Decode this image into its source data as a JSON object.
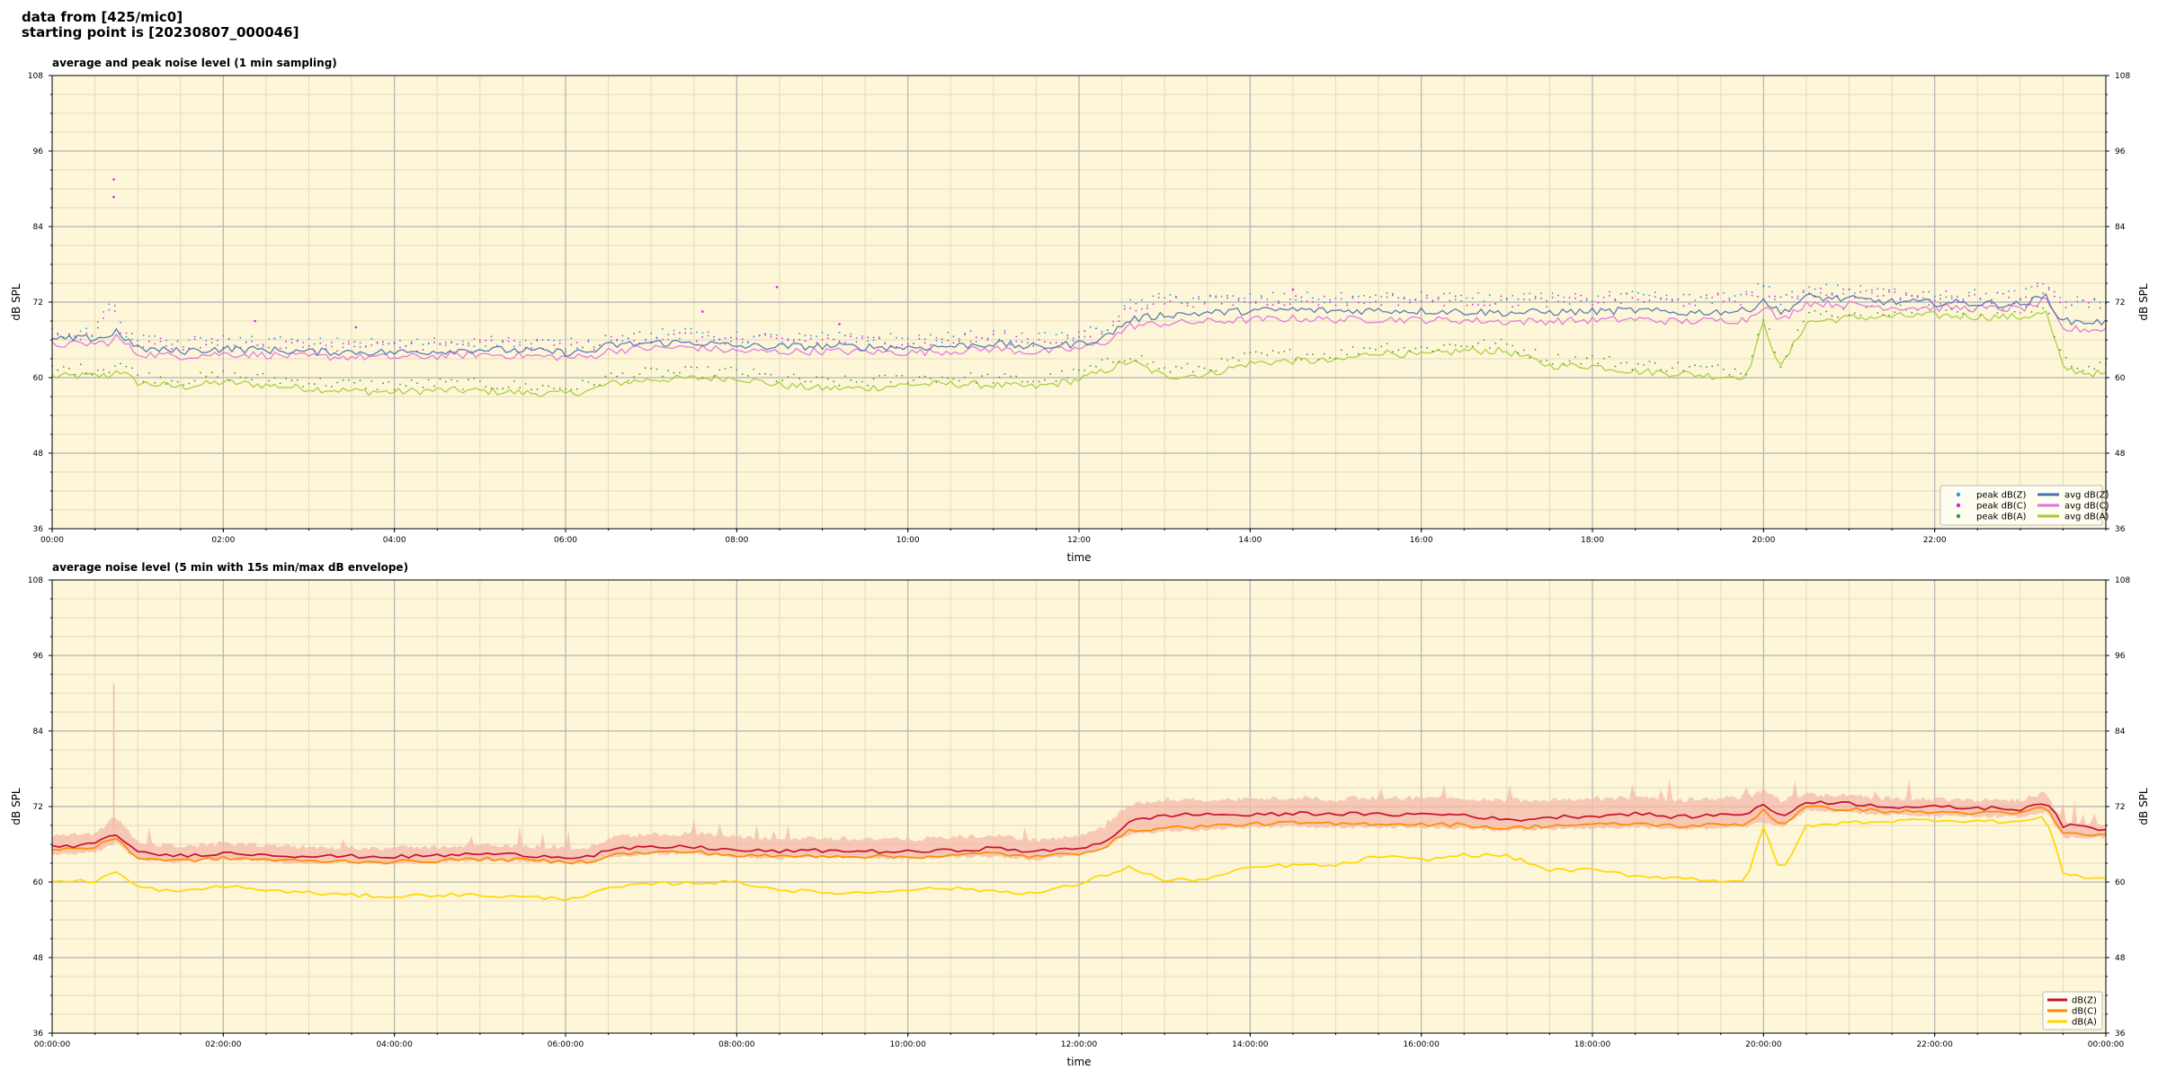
{
  "header": {
    "line1": "data from [425/mic0]",
    "line2": "starting point is [20230807_000046]"
  },
  "colors": {
    "plot_background": "#fdf6d9",
    "grid_major": "#b3b3b3",
    "grid_minor": "#e3dbb8",
    "peak_z": "#1f9ae0",
    "peak_c": "#e020e0",
    "peak_a": "#3a9a30",
    "avg_z": "#4a6fb0",
    "avg_c": "#e070e0",
    "avg_a": "#a4cc30",
    "env_z": "#c8102e",
    "env_c": "#ff8c00",
    "env_a": "#ffd700",
    "envelope_fill": "#f4b8a8"
  },
  "chart_data": [
    {
      "type": "scatter",
      "title": "average and peak noise level (1 min sampling)",
      "xlabel": "time",
      "ylabel": "dB SPL",
      "ylabel_right": "dB SPL",
      "x_unit": "hours",
      "xlim": [
        0,
        24
      ],
      "ylim": [
        36,
        108
      ],
      "yticks": [
        36,
        48,
        60,
        72,
        84,
        96,
        108
      ],
      "xticks": [
        0,
        2,
        4,
        6,
        8,
        10,
        12,
        14,
        16,
        18,
        20,
        22
      ],
      "xtick_labels": [
        "00:00",
        "02:00",
        "04:00",
        "06:00",
        "08:00",
        "10:00",
        "12:00",
        "14:00",
        "16:00",
        "18:00",
        "20:00",
        "22:00"
      ],
      "grid": true,
      "legend_placement": "lower-right",
      "legend_columns": 2,
      "x": [
        0,
        0.5,
        0.72,
        0.75,
        1.0,
        1.5,
        2.0,
        2.5,
        3.0,
        3.5,
        4.0,
        4.5,
        5.0,
        5.5,
        6.0,
        6.3,
        6.5,
        7.0,
        7.5,
        8.0,
        8.5,
        9.0,
        9.5,
        10.0,
        10.5,
        11.0,
        11.5,
        12.0,
        12.3,
        12.6,
        13.0,
        13.5,
        14.0,
        14.5,
        15.0,
        15.5,
        16.0,
        16.5,
        17.0,
        17.5,
        18.0,
        18.5,
        19.0,
        19.5,
        19.8,
        20.0,
        20.2,
        20.5,
        21.0,
        21.5,
        22.0,
        22.5,
        23.0,
        23.3,
        23.5,
        23.7,
        24.0
      ],
      "series": [
        {
          "name": "peak dB(Z)",
          "kind": "points",
          "values": [
            66.7,
            66.9,
            73.0,
            68.0,
            65.6,
            65.2,
            65.6,
            65.4,
            65.1,
            65.1,
            65.0,
            65.2,
            65.5,
            65.3,
            65.0,
            65.1,
            66.1,
            66.5,
            66.6,
            66.0,
            65.9,
            66.0,
            65.9,
            65.8,
            66.0,
            66.4,
            65.8,
            66.4,
            67.4,
            71.2,
            72.3,
            72.1,
            72.2,
            72.4,
            72.2,
            72.4,
            72.4,
            72.3,
            72.1,
            72.2,
            72.3,
            72.5,
            72.1,
            72.4,
            72.5,
            74.3,
            72.0,
            73.9,
            73.5,
            73.1,
            73.0,
            72.8,
            72.7,
            74.5,
            71.8,
            71.7,
            71.6
          ]
        },
        {
          "name": "peak dB(C)",
          "kind": "points",
          "values": [
            66.3,
            66.5,
            72.6,
            67.6,
            65.2,
            64.8,
            65.2,
            65.0,
            64.7,
            64.7,
            64.6,
            64.8,
            65.1,
            64.9,
            64.6,
            64.7,
            65.7,
            66.1,
            66.2,
            65.6,
            65.5,
            65.6,
            65.5,
            65.4,
            65.6,
            66.0,
            65.4,
            66.0,
            67.0,
            70.8,
            71.9,
            71.7,
            71.8,
            72.0,
            71.8,
            72.0,
            72.0,
            71.9,
            71.7,
            71.8,
            71.9,
            72.1,
            71.7,
            72.0,
            72.1,
            73.9,
            71.6,
            73.5,
            73.1,
            72.7,
            72.6,
            72.4,
            72.3,
            74.1,
            71.4,
            71.3,
            71.2
          ]
        },
        {
          "name": "peak dB(A)",
          "kind": "points",
          "values": [
            60.9,
            61.0,
            61.2,
            62.4,
            60.0,
            59.2,
            60.0,
            59.5,
            59.0,
            58.6,
            58.4,
            58.7,
            58.6,
            58.3,
            58.0,
            58.6,
            59.7,
            60.4,
            60.5,
            60.6,
            59.5,
            59.0,
            59.0,
            59.6,
            59.7,
            59.5,
            59.2,
            60.4,
            61.8,
            63.4,
            60.9,
            61.2,
            63.0,
            63.4,
            63.3,
            64.8,
            64.2,
            65.0,
            64.9,
            62.6,
            62.6,
            61.7,
            61.4,
            60.9,
            61.0,
            69.3,
            62.2,
            69.5,
            70.2,
            70.4,
            70.6,
            70.4,
            70.3,
            71.0,
            62.3,
            61.6,
            61.2
          ]
        },
        {
          "name": "avg dB(Z)",
          "kind": "line",
          "values": [
            66.0,
            66.3,
            66.7,
            67.5,
            64.6,
            64.2,
            64.6,
            64.4,
            64.1,
            64.1,
            64.0,
            64.2,
            64.5,
            64.3,
            64.0,
            64.1,
            65.1,
            65.5,
            65.6,
            65.0,
            64.9,
            65.0,
            64.9,
            64.8,
            65.0,
            65.4,
            64.8,
            65.4,
            66.4,
            69.2,
            70.0,
            70.3,
            70.6,
            70.8,
            70.6,
            70.7,
            70.6,
            70.5,
            70.3,
            70.4,
            70.5,
            70.7,
            70.3,
            70.5,
            70.6,
            72.4,
            70.2,
            72.8,
            72.5,
            72.0,
            71.9,
            71.8,
            71.6,
            72.9,
            68.9,
            68.9,
            68.8
          ]
        },
        {
          "name": "avg dB(C)",
          "kind": "line",
          "values": [
            65.2,
            65.4,
            65.7,
            66.5,
            63.8,
            63.4,
            63.8,
            63.6,
            63.3,
            63.3,
            63.2,
            63.4,
            63.7,
            63.5,
            63.2,
            63.3,
            64.3,
            64.7,
            64.8,
            64.2,
            64.1,
            64.2,
            64.1,
            64.0,
            64.2,
            64.6,
            64.0,
            64.6,
            65.6,
            68.2,
            68.6,
            68.9,
            69.2,
            69.4,
            69.2,
            69.3,
            69.2,
            69.1,
            68.9,
            69.0,
            69.1,
            69.3,
            68.9,
            69.1,
            69.2,
            71.5,
            69.0,
            71.9,
            71.6,
            71.2,
            71.1,
            71.0,
            70.9,
            72.1,
            67.6,
            67.7,
            67.6
          ]
        },
        {
          "name": "avg dB(A)",
          "kind": "line",
          "values": [
            60.2,
            60.3,
            60.3,
            61.4,
            59.2,
            58.5,
            59.3,
            58.8,
            58.3,
            57.9,
            57.7,
            58.0,
            57.9,
            57.6,
            57.4,
            58.0,
            59.0,
            59.7,
            59.9,
            60.0,
            58.8,
            58.3,
            58.3,
            58.9,
            59.0,
            58.8,
            58.5,
            59.7,
            61.1,
            62.6,
            60.2,
            60.5,
            62.3,
            62.7,
            62.6,
            64.1,
            63.5,
            64.3,
            64.2,
            61.9,
            61.9,
            61.0,
            60.7,
            60.2,
            60.3,
            68.6,
            61.5,
            68.8,
            69.5,
            69.7,
            69.9,
            69.7,
            69.6,
            70.3,
            61.6,
            60.9,
            60.5
          ]
        }
      ]
    },
    {
      "type": "line",
      "title": "average noise level (5 min with 15s min/max dB envelope)",
      "xlabel": "time",
      "ylabel": "dB SPL",
      "ylabel_right": "dB SPL",
      "x_unit": "hours",
      "xlim": [
        0,
        24
      ],
      "ylim": [
        36,
        108
      ],
      "yticks": [
        36,
        48,
        60,
        72,
        84,
        96,
        108
      ],
      "xticks": [
        0,
        2,
        4,
        6,
        8,
        10,
        12,
        14,
        16,
        18,
        20,
        22,
        24
      ],
      "xtick_labels": [
        "00:00:00",
        "02:00:00",
        "04:00:00",
        "06:00:00",
        "08:00:00",
        "10:00:00",
        "12:00:00",
        "14:00:00",
        "16:00:00",
        "18:00:00",
        "20:00:00",
        "22:00:00",
        "00:00:00"
      ],
      "grid": true,
      "legend_placement": "lower-right",
      "legend_columns": 1,
      "x": [
        0,
        0.5,
        0.75,
        1.0,
        1.5,
        2.0,
        2.5,
        3.0,
        3.5,
        4.0,
        4.5,
        5.0,
        5.5,
        6.0,
        6.3,
        6.5,
        7.0,
        7.5,
        8.0,
        8.5,
        9.0,
        9.5,
        10.0,
        10.5,
        11.0,
        11.5,
        12.0,
        12.3,
        12.6,
        13.0,
        13.5,
        14.0,
        14.5,
        15.0,
        15.5,
        16.0,
        16.5,
        17.0,
        17.5,
        18.0,
        18.5,
        19.0,
        19.5,
        19.8,
        20.0,
        20.2,
        20.5,
        21.0,
        21.5,
        22.0,
        22.5,
        23.0,
        23.3,
        23.5,
        23.7,
        24.0
      ],
      "envelope": {
        "min": [
          64.5,
          65.0,
          66.5,
          63.8,
          63.5,
          63.8,
          63.5,
          63.2,
          63.3,
          63.2,
          63.4,
          63.7,
          63.5,
          63.2,
          63.3,
          64.3,
          64.7,
          64.8,
          64.2,
          64.1,
          64.2,
          64.1,
          64.0,
          64.2,
          64.3,
          63.8,
          64.6,
          65.8,
          68.0,
          68.3,
          68.6,
          68.9,
          69.1,
          68.9,
          69.0,
          68.9,
          68.8,
          68.4,
          68.7,
          68.8,
          69.0,
          68.6,
          68.8,
          69.0,
          69.8,
          69.0,
          71.6,
          71.3,
          70.9,
          70.8,
          70.7,
          70.6,
          71.4,
          67.3,
          67.4,
          67.3
        ],
        "max": [
          66.9,
          67.2,
          70.0,
          65.8,
          65.3,
          65.6,
          65.4,
          65.1,
          65.1,
          65.0,
          65.2,
          65.5,
          65.3,
          65.0,
          65.1,
          66.6,
          67.2,
          67.3,
          66.8,
          66.4,
          66.6,
          66.5,
          66.4,
          66.7,
          67.0,
          66.3,
          66.8,
          68.3,
          72.0,
          72.8,
          72.6,
          72.8,
          73.0,
          72.8,
          73.0,
          73.0,
          72.9,
          72.6,
          72.8,
          72.8,
          73.0,
          72.6,
          72.9,
          73.0,
          74.3,
          72.6,
          73.6,
          73.3,
          72.9,
          72.8,
          72.7,
          72.6,
          74.0,
          69.1,
          69.2,
          69.0
        ]
      },
      "series": [
        {
          "name": "dB(Z)",
          "values": [
            65.6,
            66.0,
            67.7,
            64.6,
            64.2,
            64.6,
            64.4,
            64.1,
            64.1,
            64.0,
            64.2,
            64.5,
            64.3,
            64.0,
            64.1,
            65.1,
            65.5,
            65.6,
            65.0,
            64.9,
            65.0,
            64.9,
            64.8,
            65.0,
            65.4,
            64.8,
            65.4,
            66.4,
            69.6,
            70.6,
            70.8,
            70.6,
            70.9,
            70.9,
            70.7,
            70.8,
            70.7,
            69.8,
            70.3,
            70.5,
            70.9,
            70.3,
            70.7,
            70.9,
            72.4,
            70.2,
            72.8,
            72.5,
            72.0,
            71.9,
            71.8,
            71.6,
            72.9,
            68.9,
            68.9,
            68.3
          ]
        },
        {
          "name": "dB(C)",
          "values": [
            65.2,
            65.5,
            67.1,
            63.8,
            63.4,
            63.8,
            63.6,
            63.3,
            63.3,
            63.2,
            63.4,
            63.7,
            63.5,
            63.2,
            63.3,
            64.3,
            64.7,
            64.8,
            64.2,
            64.1,
            64.2,
            64.1,
            64.0,
            64.2,
            64.6,
            64.0,
            64.6,
            65.6,
            68.2,
            68.6,
            68.9,
            69.2,
            69.4,
            69.2,
            69.3,
            69.2,
            69.1,
            68.5,
            69.0,
            69.1,
            69.3,
            68.9,
            69.1,
            69.2,
            71.5,
            69.0,
            71.9,
            71.6,
            71.2,
            71.1,
            71.0,
            70.9,
            72.1,
            67.6,
            67.7,
            67.4
          ]
        },
        {
          "name": "dB(A)",
          "values": [
            60.1,
            60.2,
            61.6,
            59.2,
            58.4,
            59.4,
            58.7,
            58.3,
            57.9,
            57.7,
            58.0,
            57.9,
            57.6,
            57.4,
            58.0,
            59.0,
            59.7,
            59.9,
            60.0,
            58.8,
            58.3,
            58.3,
            58.9,
            59.0,
            58.6,
            58.2,
            59.7,
            61.1,
            62.4,
            60.2,
            60.5,
            62.3,
            62.7,
            62.6,
            64.1,
            63.5,
            64.3,
            64.2,
            61.9,
            61.9,
            61.0,
            60.7,
            60.2,
            60.3,
            68.6,
            61.5,
            68.8,
            69.5,
            69.7,
            69.9,
            69.7,
            69.6,
            70.3,
            61.6,
            60.9,
            60.5
          ]
        }
      ]
    }
  ]
}
